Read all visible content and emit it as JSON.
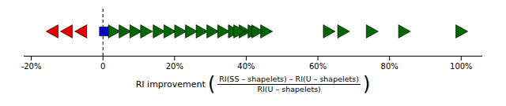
{
  "chart_data": {
    "type": "scatter",
    "xlabel": {
      "text": "RI improvement",
      "brackets": [
        "(",
        ")"
      ],
      "numerator": "RI(SS – shapelets) – RI(U – shapelets)",
      "denominator": "RI(U – shapelets)"
    },
    "xlim": [
      -0.22,
      1.06
    ],
    "xticks": [
      {
        "value": -0.2,
        "label": "-20%"
      },
      0,
      {
        "value": 0.2,
        "label": "20%"
      },
      {
        "value": 0.4,
        "label": "40%"
      },
      {
        "value": 0.6,
        "label": "60%"
      },
      {
        "value": 0.8,
        "label": "80%"
      },
      {
        "value": 1.0,
        "label": "100%"
      }
    ],
    "tick_labels": "x",
    "grid": false,
    "vline_x": 0.0,
    "series": [
      {
        "color": "#dd0000",
        "marker": "triangle-left",
        "x": [
          -0.14,
          -0.1,
          -0.06
        ]
      },
      {
        "color": "#0000cc",
        "marker": "square",
        "x": [
          0.003
        ]
      },
      {
        "color": "#006600",
        "marker": "triangle-right",
        "x": [
          0.03,
          0.06,
          0.09,
          0.12,
          0.155,
          0.185,
          0.215,
          0.245,
          0.275,
          0.305,
          0.335,
          0.365,
          0.395,
          0.42,
          0.455,
          0.38,
          0.43,
          0.63,
          0.67,
          0.75,
          0.84,
          1.0
        ]
      }
    ]
  }
}
